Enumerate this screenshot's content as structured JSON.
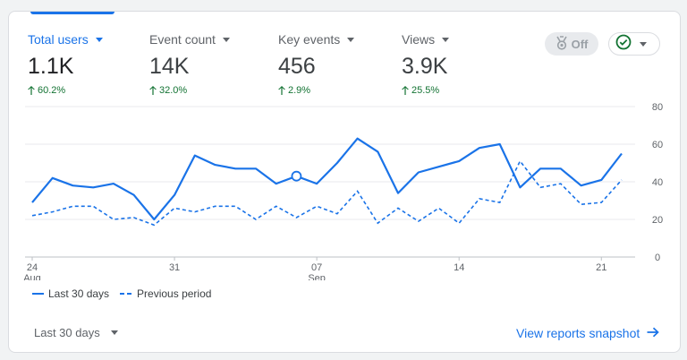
{
  "metrics": [
    {
      "label": "Total users",
      "value": "1.1K",
      "change": "60.2%",
      "active": true
    },
    {
      "label": "Event count",
      "value": "14K",
      "change": "32.0%",
      "active": false
    },
    {
      "label": "Key events",
      "value": "456",
      "change": "2.9%",
      "active": false
    },
    {
      "label": "Views",
      "value": "3.9K",
      "change": "25.5%",
      "active": false
    }
  ],
  "toggle": {
    "label": "Off",
    "icon": "medal-icon"
  },
  "status_dropdown": {
    "icon": "check-circle-icon"
  },
  "legend": {
    "current": "Last 30 days",
    "previous": "Previous period"
  },
  "footer": {
    "date_range": "Last 30 days",
    "link": "View reports snapshot",
    "link_icon": "arrow-right-icon"
  },
  "colors": {
    "accent": "#1a73e8",
    "positive": "#137333",
    "text": "#202124",
    "muted": "#5f6368"
  },
  "chart_data": {
    "type": "line",
    "x": [
      "Aug 24",
      "Aug 25",
      "Aug 26",
      "Aug 27",
      "Aug 28",
      "Aug 29",
      "Aug 30",
      "Aug 31",
      "Sep 01",
      "Sep 02",
      "Sep 03",
      "Sep 04",
      "Sep 05",
      "Sep 06",
      "Sep 07",
      "Sep 08",
      "Sep 09",
      "Sep 10",
      "Sep 11",
      "Sep 12",
      "Sep 13",
      "Sep 14",
      "Sep 15",
      "Sep 16",
      "Sep 17",
      "Sep 18",
      "Sep 19",
      "Sep 20",
      "Sep 21",
      "Sep 22"
    ],
    "x_ticks": [
      {
        "day": "24",
        "month": "Aug",
        "index": 0
      },
      {
        "day": "31",
        "month": "",
        "index": 7
      },
      {
        "day": "07",
        "month": "Sep",
        "index": 14
      },
      {
        "day": "14",
        "month": "",
        "index": 21
      },
      {
        "day": "21",
        "month": "",
        "index": 28
      }
    ],
    "y_ticks": [
      0,
      20,
      40,
      60,
      80
    ],
    "ylim": [
      0,
      80
    ],
    "highlight_index": 13,
    "series": [
      {
        "name": "Last 30 days",
        "style": "solid",
        "values": [
          29,
          42,
          38,
          37,
          39,
          33,
          20,
          33,
          54,
          49,
          47,
          47,
          39,
          43,
          39,
          50,
          63,
          56,
          34,
          45,
          48,
          51,
          58,
          60,
          37,
          47,
          47,
          38,
          41,
          55
        ]
      },
      {
        "name": "Previous period",
        "style": "dashed",
        "values": [
          22,
          24,
          27,
          27,
          20,
          21,
          17,
          26,
          24,
          27,
          27,
          20,
          27,
          21,
          27,
          23,
          35,
          18,
          26,
          19,
          26,
          18,
          31,
          29,
          51,
          37,
          39,
          28,
          29,
          41
        ]
      }
    ]
  }
}
